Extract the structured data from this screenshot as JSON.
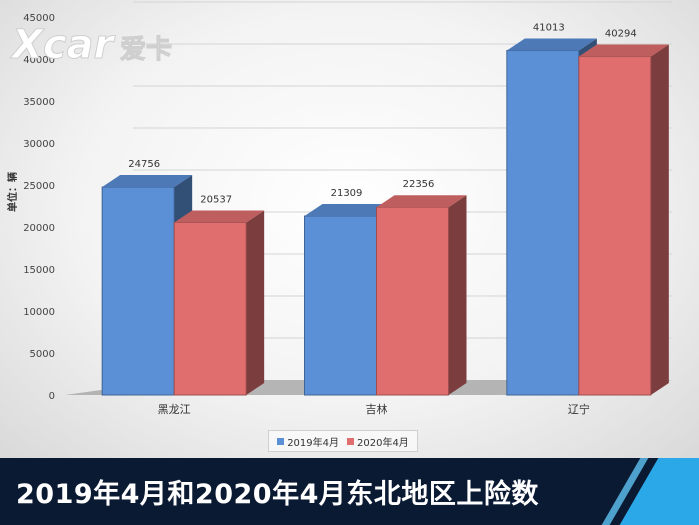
{
  "chart_data": {
    "type": "bar",
    "categories": [
      "黑龙江",
      "吉林",
      "辽宁"
    ],
    "series": [
      {
        "name": "2019年4月",
        "values": [
          24756,
          21309,
          41013
        ],
        "color": "#5b8fd6"
      },
      {
        "name": "2020年4月",
        "values": [
          20537,
          22356,
          40294
        ],
        "color": "#e06e6e"
      }
    ],
    "ylabel": "单位：辆",
    "ylim": [
      0,
      45000
    ],
    "yticks": [
      0,
      5000,
      10000,
      15000,
      20000,
      25000,
      30000,
      35000,
      40000,
      45000
    ],
    "legend_position": "bottom",
    "grid": true,
    "style": "3d-clustered-column"
  },
  "logo": {
    "text": "爱卡",
    "brand_mark": "Xcar"
  },
  "banner": {
    "title": "2019年4月和2020年4月东北地区上险数"
  }
}
